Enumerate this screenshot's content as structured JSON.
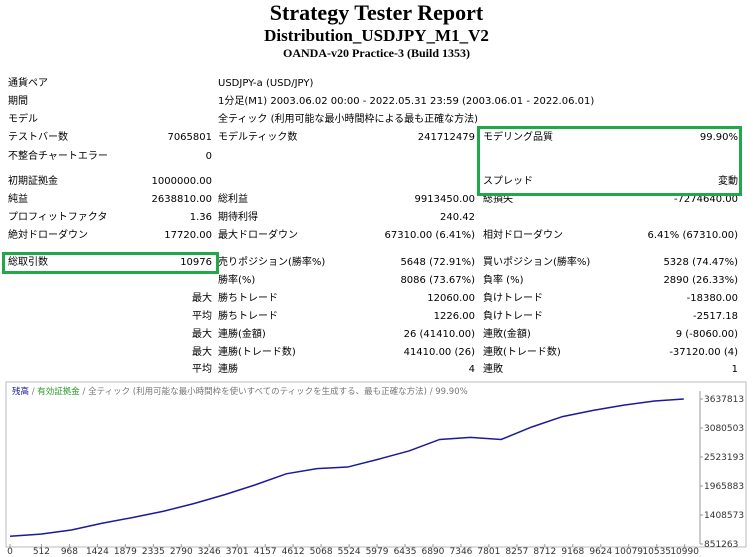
{
  "header": {
    "title": "Strategy Tester Report",
    "subtitle": "Distribution_USDJPY_M1_V2",
    "server": "OANDA-v20 Practice-3 (Build 1353)"
  },
  "rows": [
    [
      "通貨ペア",
      null,
      "USDJPY-a (USD/JPY)",
      null,
      null,
      null
    ],
    [
      "期間",
      null,
      "1分足(M1) 2003.06.02 00:00 - 2022.05.31 23:59 (2003.06.01 - 2022.06.01)",
      null,
      null,
      null
    ],
    [
      "モデル",
      null,
      "全ティック (利用可能な最小時間枠による最も正確な方法)",
      null,
      null,
      null
    ],
    [
      "テストバー数",
      "7065801",
      "モデルティック数",
      "241712479",
      "モデリング品質",
      "99.90%"
    ],
    [
      "不整合チャートエラー",
      "0",
      null,
      null,
      null,
      null
    ],
    [
      "初期証拠金",
      "1000000.00",
      null,
      null,
      "スプレッド",
      "変動"
    ],
    [
      "純益",
      "2638810.00",
      "総利益",
      "9913450.00",
      "総損失",
      "-7274640.00"
    ],
    [
      "プロフィットファクタ",
      "1.36",
      "期待利得",
      "240.42",
      null,
      null
    ],
    [
      "絶対ドローダウン",
      "17720.00",
      "最大ドローダウン",
      "67310.00 (6.41%)",
      "相対ドローダウン",
      "6.41% (67310.00)"
    ],
    [
      "総取引数",
      "10976",
      "売りポジション(勝率%)",
      "5648 (72.91%)",
      "買いポジション(勝率%)",
      "5328 (74.47%)"
    ],
    [
      null,
      null,
      "勝率(%)",
      "8086 (73.67%)",
      "負率 (%)",
      "2890 (26.33%)"
    ],
    [
      null,
      "最大",
      "勝ちトレード",
      "12060.00",
      "負けトレード",
      "-18380.00"
    ],
    [
      null,
      "平均",
      "勝ちトレード",
      "1226.00",
      "負けトレード",
      "-2517.18"
    ],
    [
      null,
      "最大",
      "連勝(金額)",
      "26 (41410.00)",
      "連敗(金額)",
      "9 (-8060.00)"
    ],
    [
      null,
      "最大",
      "連勝(トレード数)",
      "41410.00 (26)",
      "連敗(トレード数)",
      "-37120.00 (4)"
    ],
    [
      null,
      "平均",
      "連勝",
      "4",
      "連敗",
      "1"
    ]
  ],
  "chart": {
    "type": "line",
    "legend": {
      "balance": "残高",
      "equity": "有効証拠金",
      "separator": "/",
      "model": "全ティック (利用可能な最小時間枠を使いすべてのティックを生成する、最も正確な方法)",
      "quality": "99.90%"
    },
    "x": [
      0,
      500,
      1000,
      1500,
      2000,
      2500,
      3000,
      3500,
      4000,
      4500,
      5000,
      5500,
      6000,
      6500,
      7000,
      7500,
      8000,
      8500,
      9000,
      9500,
      10000,
      10500,
      10976
    ],
    "series": [
      {
        "name": "残高",
        "color": "#1a1a9a",
        "values": [
          1000000,
          1040000,
          1120000,
          1250000,
          1360000,
          1480000,
          1630000,
          1800000,
          1990000,
          2200000,
          2300000,
          2330000,
          2480000,
          2640000,
          2860000,
          2900000,
          2860000,
          3100000,
          3300000,
          3420000,
          3520000,
          3600000,
          3638810
        ]
      }
    ],
    "xlim": [
      0,
      11240
    ],
    "xticks": [
      0,
      512,
      968,
      1424,
      1879,
      2335,
      2790,
      3246,
      3701,
      4157,
      4612,
      5068,
      5524,
      5979,
      6435,
      6890,
      7346,
      7801,
      8257,
      8712,
      9168,
      9624,
      10079,
      10535,
      10990
    ],
    "ylim": [
      851263,
      3637813
    ],
    "yticks": [
      851263,
      1408573,
      1965883,
      2523193,
      3080503,
      3637813
    ]
  }
}
